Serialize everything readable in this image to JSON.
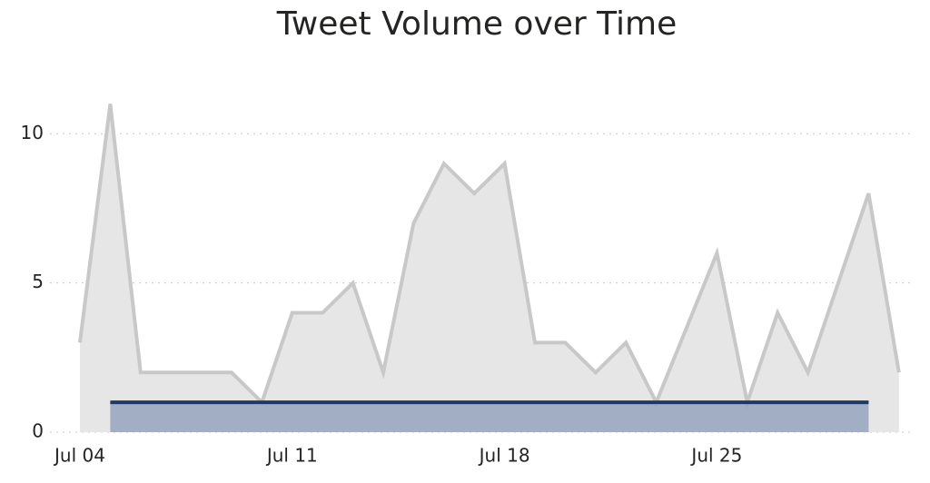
{
  "chart_data": {
    "type": "area",
    "title": "Tweet Volume over Time",
    "categories": [
      "Jul 04",
      null,
      null,
      null,
      null,
      null,
      null,
      "Jul 11",
      null,
      null,
      null,
      null,
      null,
      null,
      "Jul 18",
      null,
      null,
      null,
      null,
      null,
      null,
      "Jul 25",
      null,
      null,
      null,
      null,
      null,
      null
    ],
    "series": [
      {
        "color": "#c8c8c8",
        "fill": "#e6e6e6",
        "values": [
          3,
          11,
          2,
          2,
          2,
          2,
          1,
          4,
          4,
          5,
          2,
          7,
          9,
          8,
          9,
          3,
          3,
          2,
          3,
          1,
          3.5,
          6,
          1,
          4,
          2,
          5,
          8,
          2
        ]
      },
      {
        "color": "#1f3864",
        "fill": "#8a9bb8",
        "values": [
          null,
          1,
          1,
          1,
          1,
          1,
          1,
          1,
          1,
          1,
          1,
          1,
          1,
          1,
          1,
          1,
          1,
          1,
          1,
          1,
          1,
          1,
          1,
          1,
          1,
          1,
          1,
          null
        ]
      }
    ],
    "ylim": [
      0,
      11.5
    ],
    "yticks": [
      0,
      5,
      10
    ],
    "grid": true
  }
}
